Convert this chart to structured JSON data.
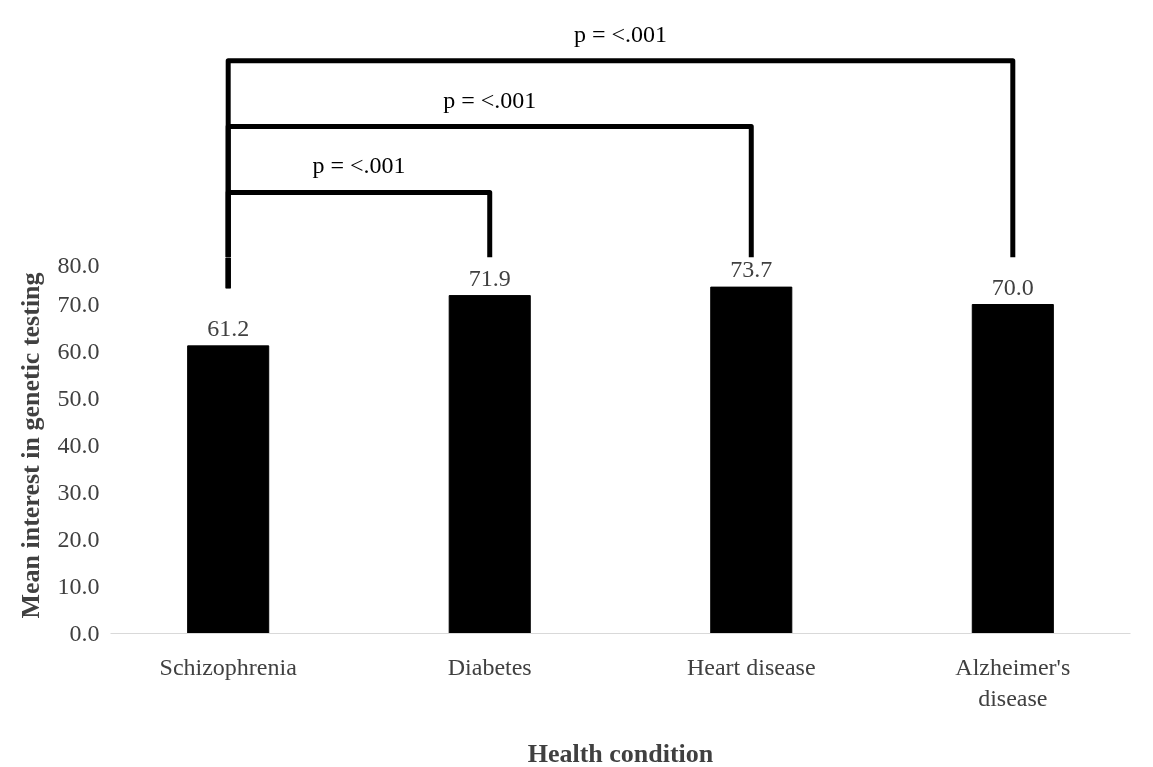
{
  "chart_data": {
    "type": "bar",
    "categories": [
      "Schizophrenia",
      "Diabetes",
      "Heart disease",
      "Alzheimer's disease"
    ],
    "values": [
      61.2,
      71.9,
      73.7,
      70.0
    ],
    "color": "#000000",
    "xlabel": "Health condition",
    "ylabel": "Mean interest in genetic testing",
    "ylim": [
      0,
      80
    ],
    "yticks": [
      {
        "value": 0,
        "label": "0.0"
      },
      {
        "value": 10,
        "label": "10.0"
      },
      {
        "value": 20,
        "label": "20.0"
      },
      {
        "value": 30,
        "label": "30.0"
      },
      {
        "value": 40,
        "label": "40.0"
      },
      {
        "value": 50,
        "label": "50.0"
      },
      {
        "value": 60,
        "label": "60.0"
      },
      {
        "value": 70,
        "label": "70.0"
      },
      {
        "value": 80,
        "label": "80.0"
      }
    ],
    "value_labels": [
      "61.2",
      "71.9",
      "73.7",
      "70.0"
    ],
    "annotations": [
      "p = <.001",
      "p = <.001",
      "p = <.001"
    ],
    "grid": false
  }
}
